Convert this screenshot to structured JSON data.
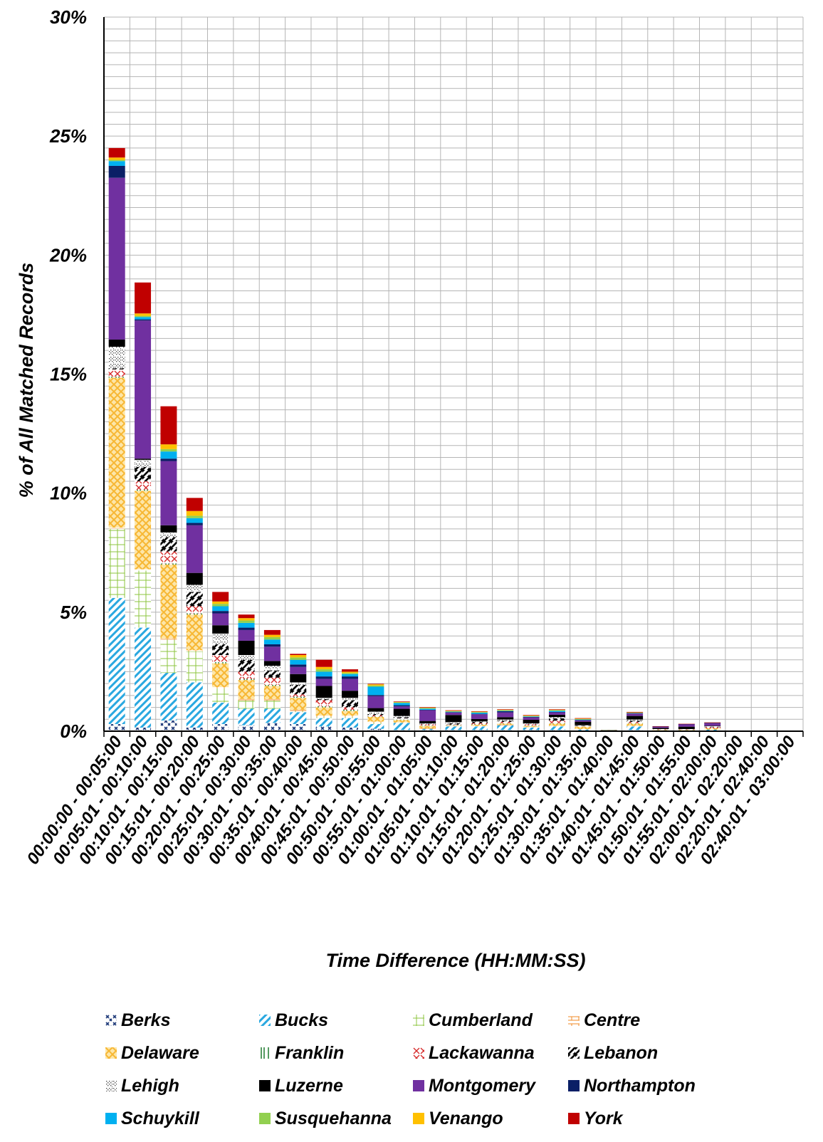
{
  "chart_data": {
    "type": "bar",
    "stacked": true,
    "xlabel": "Time Difference (HH:MM:SS)",
    "ylabel": "% of All Matched Records",
    "ylim": [
      0,
      30
    ],
    "yticks": [
      "0%",
      "5%",
      "10%",
      "15%",
      "20%",
      "25%",
      "30%"
    ],
    "grid": true,
    "legend_position": "bottom",
    "categories": [
      "00:00:00 - 00:05:00",
      "00:05:01 - 00:10:00",
      "00:10:01 - 00:15:00",
      "00:15:01 - 00:20:00",
      "00:20:01 - 00:25:00",
      "00:25:01 - 00:30:00",
      "00:30:01 - 00:35:00",
      "00:35:01 - 00:40:00",
      "00:40:01 - 00:45:00",
      "00:45:01 - 00:50:00",
      "00:50:01 - 00:55:00",
      "00:55:01 - 01:00:00",
      "01:00:01 - 01:05:00",
      "01:05:01 - 01:10:00",
      "01:10:01 - 01:15:00",
      "01:15:01 - 01:20:00",
      "01:20:01 - 01:25:00",
      "01:25:01 - 01:30:00",
      "01:30:01 - 01:35:00",
      "01:35:01 - 01:40:00",
      "01:40:01 - 01:45:00",
      "01:45:01 - 01:50:00",
      "01:50:01 - 01:55:00",
      "01:55:01 - 02:00:00",
      "02:00:01 - 02:20:00",
      "02:20:01 - 02:40:00",
      "02:40:01 - 03:00:00"
    ],
    "series": [
      {
        "name": "Berks",
        "color": "#1f3a7a",
        "values": [
          0.3,
          0.15,
          0.45,
          0.15,
          0.3,
          0.25,
          0.35,
          0.3,
          0.2,
          0.15,
          0.1,
          0.05,
          0.05,
          0.05,
          0.05,
          0.05,
          0.05,
          0.05,
          0.02,
          0.01,
          0.05,
          0.02,
          0.02,
          0.02,
          0,
          0,
          0
        ]
      },
      {
        "name": "Bucks",
        "color": "#29a8e0",
        "values": [
          5.3,
          4.2,
          2.0,
          1.9,
          0.9,
          0.7,
          0.6,
          0.5,
          0.35,
          0.4,
          0.2,
          0.3,
          0.05,
          0.15,
          0.15,
          0.2,
          0.1,
          0.15,
          0.05,
          0.01,
          0.15,
          0.02,
          0.02,
          0.05,
          0,
          0,
          0
        ]
      },
      {
        "name": "Cumberland",
        "color": "#8cc63f",
        "values": [
          2.9,
          2.4,
          1.4,
          1.3,
          0.6,
          0.35,
          0.35,
          0.05,
          0.05,
          0.05,
          0.05,
          0,
          0,
          0,
          0,
          0,
          0,
          0,
          0,
          0,
          0,
          0,
          0,
          0,
          0,
          0,
          0
        ]
      },
      {
        "name": "Centre",
        "color": "#f08a24",
        "values": [
          0.05,
          0.05,
          0.05,
          0.05,
          0.05,
          0.05,
          0.05,
          0.05,
          0.05,
          0.05,
          0.05,
          0.02,
          0.02,
          0.02,
          0.02,
          0.02,
          0.02,
          0.02,
          0.02,
          0,
          0.02,
          0,
          0,
          0,
          0,
          0,
          0
        ]
      },
      {
        "name": "Delaware",
        "color": "#f7b733",
        "values": [
          6.3,
          3.3,
          3.1,
          1.5,
          1.0,
          0.8,
          0.55,
          0.5,
          0.35,
          0.2,
          0.2,
          0.1,
          0.1,
          0.02,
          0.05,
          0.05,
          0.05,
          0.1,
          0.1,
          0.01,
          0.1,
          0.02,
          0.02,
          0.05,
          0,
          0,
          0
        ]
      },
      {
        "name": "Franklin",
        "color": "#1e7a2e",
        "values": [
          0.05,
          0.05,
          0.05,
          0.05,
          0.05,
          0.05,
          0.05,
          0.05,
          0.05,
          0.05,
          0.02,
          0.02,
          0.02,
          0.02,
          0.02,
          0.02,
          0.02,
          0.02,
          0,
          0,
          0.02,
          0,
          0,
          0,
          0,
          0,
          0
        ]
      },
      {
        "name": "Lackawanna",
        "color": "#d62b2b",
        "values": [
          0.3,
          0.35,
          0.5,
          0.3,
          0.3,
          0.3,
          0.3,
          0.1,
          0.25,
          0.1,
          0.05,
          0.05,
          0.05,
          0.02,
          0.05,
          0.05,
          0.05,
          0.1,
          0.02,
          0.01,
          0.05,
          0.02,
          0.02,
          0.05,
          0,
          0,
          0
        ]
      },
      {
        "name": "Lebanon",
        "color": "#000000",
        "values": [
          0.05,
          0.6,
          0.6,
          0.6,
          0.45,
          0.5,
          0.3,
          0.4,
          0.05,
          0.3,
          0.05,
          0.05,
          0.02,
          0.05,
          0.05,
          0.05,
          0.02,
          0.1,
          0.02,
          0,
          0.05,
          0,
          0,
          0.02,
          0,
          0,
          0
        ]
      },
      {
        "name": "Lehigh",
        "color": "#7a7a7a",
        "values": [
          0.9,
          0.3,
          0.2,
          0.3,
          0.45,
          0.2,
          0.2,
          0.1,
          0.05,
          0.1,
          0.1,
          0.05,
          0.02,
          0.05,
          0.02,
          0.05,
          0.02,
          0.05,
          0.02,
          0,
          0.05,
          0.01,
          0.01,
          0.02,
          0,
          0,
          0
        ]
      },
      {
        "name": "Luzerne",
        "color": "#000000",
        "values": [
          0.3,
          0.05,
          0.3,
          0.5,
          0.35,
          0.6,
          0.2,
          0.35,
          0.5,
          0.3,
          0.15,
          0.3,
          0.1,
          0.3,
          0.1,
          0.1,
          0.15,
          0.1,
          0.15,
          0,
          0.15,
          0.05,
          0.1,
          0.02,
          0,
          0,
          0
        ]
      },
      {
        "name": "Montgomery",
        "color": "#7030a0",
        "values": [
          6.8,
          5.8,
          2.7,
          2.0,
          0.5,
          0.45,
          0.6,
          0.3,
          0.3,
          0.5,
          0.5,
          0.1,
          0.45,
          0.1,
          0.2,
          0.2,
          0.1,
          0.1,
          0.05,
          0.01,
          0.1,
          0.05,
          0.1,
          0.1,
          0,
          0,
          0
        ]
      },
      {
        "name": "Northampton",
        "color": "#0a1f66",
        "values": [
          0.5,
          0.05,
          0.1,
          0.1,
          0.1,
          0.1,
          0.1,
          0.1,
          0.1,
          0.1,
          0.05,
          0.05,
          0.02,
          0.02,
          0.02,
          0.05,
          0.02,
          0.02,
          0.02,
          0,
          0.02,
          0.01,
          0.01,
          0.02,
          0,
          0,
          0
        ]
      },
      {
        "name": "Schuykill",
        "color": "#00b0f0",
        "values": [
          0.2,
          0.1,
          0.3,
          0.2,
          0.2,
          0.2,
          0.2,
          0.2,
          0.2,
          0.1,
          0.35,
          0.1,
          0.05,
          0.02,
          0.05,
          0.02,
          0.02,
          0.05,
          0.02,
          0,
          0.01,
          0,
          0,
          0,
          0,
          0,
          0
        ]
      },
      {
        "name": "Susquehanna",
        "color": "#92d050",
        "values": [
          0.05,
          0.05,
          0.1,
          0.1,
          0.1,
          0.1,
          0.1,
          0.1,
          0.1,
          0.05,
          0.05,
          0.02,
          0.02,
          0.02,
          0.02,
          0.02,
          0.02,
          0.02,
          0.02,
          0.01,
          0.01,
          0,
          0,
          0,
          0,
          0,
          0
        ]
      },
      {
        "name": "Venango",
        "color": "#ffc000",
        "values": [
          0.1,
          0.1,
          0.2,
          0.2,
          0.1,
          0.1,
          0.1,
          0.1,
          0.1,
          0.05,
          0.05,
          0.02,
          0.02,
          0.02,
          0.02,
          0.02,
          0.02,
          0.02,
          0.02,
          0,
          0.01,
          0,
          0,
          0,
          0,
          0,
          0
        ]
      },
      {
        "name": "York",
        "color": "#c00000",
        "values": [
          0.4,
          1.3,
          1.6,
          0.55,
          0.4,
          0.15,
          0.2,
          0.05,
          0.3,
          0.1,
          0.02,
          0.02,
          0.02,
          0.02,
          0.02,
          0.02,
          0.02,
          0.02,
          0.02,
          0,
          0.02,
          0.01,
          0.01,
          0.02,
          0,
          0,
          0
        ]
      }
    ]
  }
}
